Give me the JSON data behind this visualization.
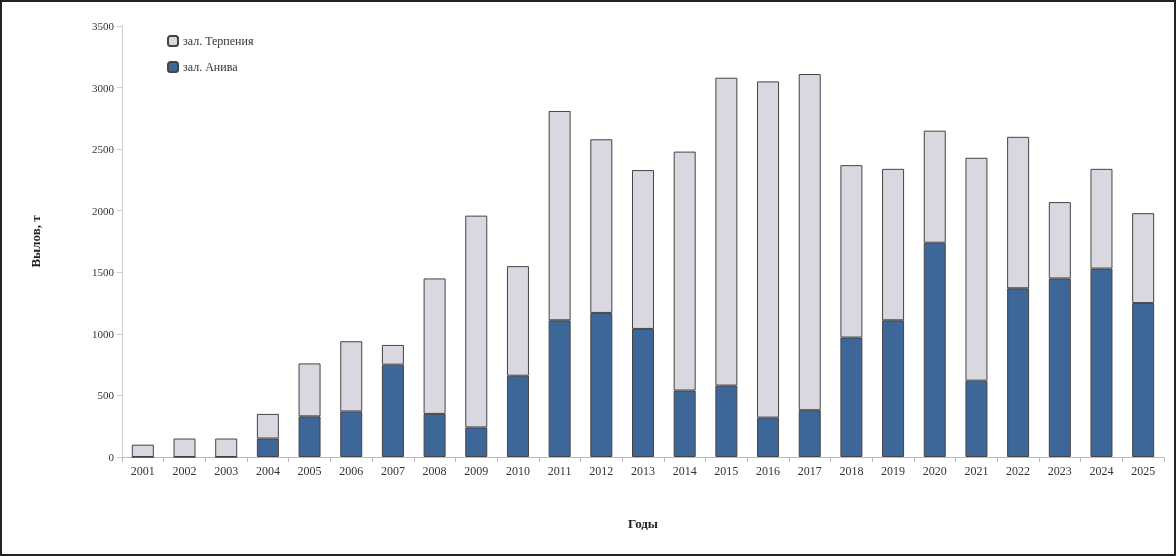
{
  "chart_data": {
    "type": "bar",
    "stacked": true,
    "xlabel": "Годы",
    "ylabel": "Вылов, т",
    "categories": [
      "2001",
      "2002",
      "2003",
      "2004",
      "2005",
      "2006",
      "2007",
      "2008",
      "2009",
      "2010",
      "2011",
      "2012",
      "2013",
      "2014",
      "2015",
      "2016",
      "2017",
      "2018",
      "2019",
      "2020",
      "2021",
      "2022",
      "2023",
      "2024",
      "2025"
    ],
    "series": [
      {
        "name": "зал. Анива",
        "color": "#3d6699",
        "values": [
          0,
          0,
          0,
          150,
          330,
          370,
          750,
          350,
          240,
          660,
          1110,
          1170,
          1040,
          540,
          580,
          320,
          380,
          970,
          1110,
          1740,
          620,
          1370,
          1450,
          1530,
          1250
        ]
      },
      {
        "name": "зал. Терпения",
        "color": "#d9d7df",
        "values": [
          100,
          150,
          150,
          200,
          430,
          570,
          160,
          1100,
          1720,
          890,
          1700,
          1410,
          1290,
          1940,
          2500,
          2730,
          2730,
          1400,
          1230,
          910,
          1810,
          1230,
          620,
          810,
          730
        ]
      }
    ],
    "ylim": [
      0,
      3500
    ],
    "yticks": [
      0,
      500,
      1000,
      1500,
      2000,
      2500,
      3000,
      3500
    ],
    "grid": false,
    "legend": "top left"
  }
}
